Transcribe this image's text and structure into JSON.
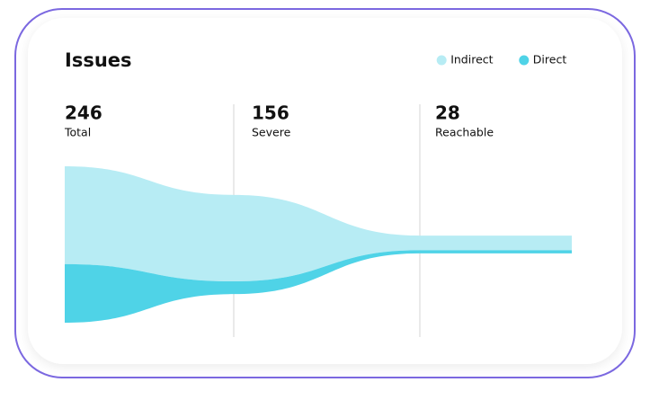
{
  "chart_data": {
    "type": "funnel",
    "title": "Issues",
    "legend": "top-right",
    "categories": [
      "Total",
      "Severe",
      "Reachable"
    ],
    "values": [
      246,
      156,
      28
    ],
    "series": [
      {
        "name": "Indirect",
        "color": "#b7ecf4",
        "values": [
          154,
          136,
          23
        ]
      },
      {
        "name": "Direct",
        "color": "#4fd3e7",
        "values": [
          92,
          20,
          5
        ]
      }
    ]
  }
}
